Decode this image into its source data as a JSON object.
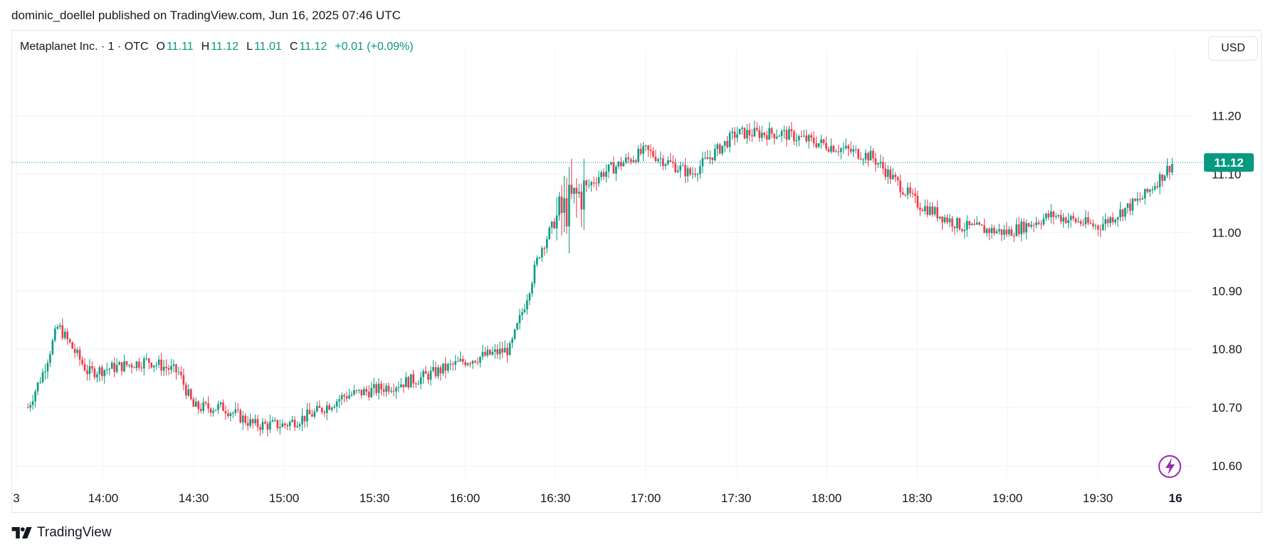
{
  "header": {
    "published_text": "dominic_doellel published on TradingView.com, Jun 16, 2025 07:46 UTC"
  },
  "legend": {
    "symbol": "Metaplanet Inc. · 1 · OTC",
    "o_label": "O",
    "o_value": "11.11",
    "h_label": "H",
    "h_value": "11.12",
    "l_label": "L",
    "l_value": "11.01",
    "c_label": "C",
    "c_value": "11.12",
    "change": "+0.01 (+0.09%)"
  },
  "currency_button": "USD",
  "brand": {
    "name": "TradingView"
  },
  "colors": {
    "up": "#089981",
    "down": "#f23645",
    "grid": "#f0f3fa",
    "text": "#131722",
    "lightning": "#9c27b0"
  },
  "icons": {
    "logo": "tradingview-logo-icon",
    "lightning": "lightning-icon"
  },
  "chart_data": {
    "type": "candlestick",
    "title": "",
    "xlabel": "",
    "ylabel": "",
    "ylim": [
      10.55,
      11.27
    ],
    "y_ticks": [
      "10.60",
      "10.70",
      "10.80",
      "10.90",
      "11.00",
      "11.10",
      "11.20"
    ],
    "x_ticks": [
      "3",
      "14:00",
      "14:30",
      "15:00",
      "15:30",
      "16:00",
      "16:30",
      "17:00",
      "17:30",
      "18:00",
      "18:30",
      "19:00",
      "19:30",
      "16"
    ],
    "last_price": "11.12",
    "grid": true,
    "approx_close_path": [
      [
        "13:35",
        10.7
      ],
      [
        "13:40",
        10.76
      ],
      [
        "13:45",
        10.84
      ],
      [
        "13:50",
        10.8
      ],
      [
        "13:55",
        10.76
      ],
      [
        "14:05",
        10.77
      ],
      [
        "14:15",
        10.78
      ],
      [
        "14:25",
        10.76
      ],
      [
        "14:30",
        10.7
      ],
      [
        "14:40",
        10.7
      ],
      [
        "14:50",
        10.67
      ],
      [
        "15:00",
        10.67
      ],
      [
        "15:10",
        10.69
      ],
      [
        "15:20",
        10.72
      ],
      [
        "15:30",
        10.73
      ],
      [
        "15:45",
        10.75
      ],
      [
        "16:00",
        10.78
      ],
      [
        "16:15",
        10.8
      ],
      [
        "16:20",
        10.88
      ],
      [
        "16:25",
        10.97
      ],
      [
        "16:30",
        11.02
      ],
      [
        "16:35",
        11.05
      ],
      [
        "16:45",
        11.1
      ],
      [
        "17:00",
        11.14
      ],
      [
        "17:15",
        11.1
      ],
      [
        "17:30",
        11.17
      ],
      [
        "17:45",
        11.17
      ],
      [
        "18:00",
        11.15
      ],
      [
        "18:15",
        11.13
      ],
      [
        "18:30",
        11.05
      ],
      [
        "18:45",
        11.01
      ],
      [
        "19:00",
        11.0
      ],
      [
        "19:15",
        11.03
      ],
      [
        "19:30",
        11.01
      ],
      [
        "19:45",
        11.06
      ],
      [
        "19:55",
        11.12
      ]
    ]
  }
}
